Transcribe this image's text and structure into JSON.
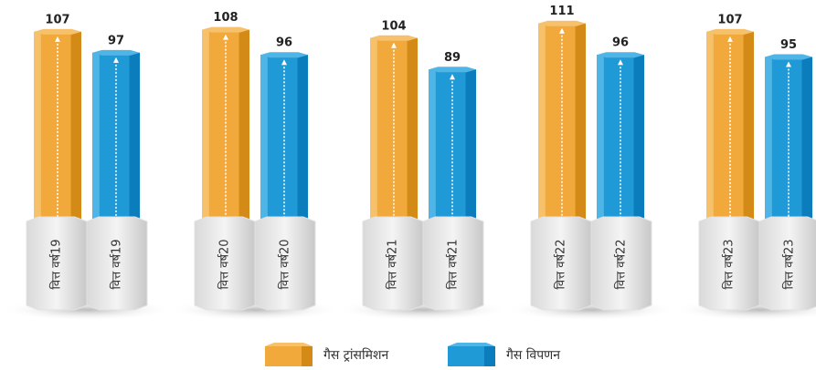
{
  "chart_data": {
    "type": "bar",
    "categories": [
      "वित्त वर्ष19",
      "वित्त वर्ष20",
      "वित्त वर्ष21",
      "वित्त वर्ष22",
      "वित्त वर्ष23"
    ],
    "series": [
      {
        "name": "गैस ट्रांसमिशन",
        "color": "#f2a93b",
        "values": [
          107,
          108,
          104,
          111,
          107
        ]
      },
      {
        "name": "गैस विपणन",
        "color": "#1f9ad6",
        "values": [
          97,
          96,
          89,
          96,
          95
        ]
      }
    ]
  }
}
